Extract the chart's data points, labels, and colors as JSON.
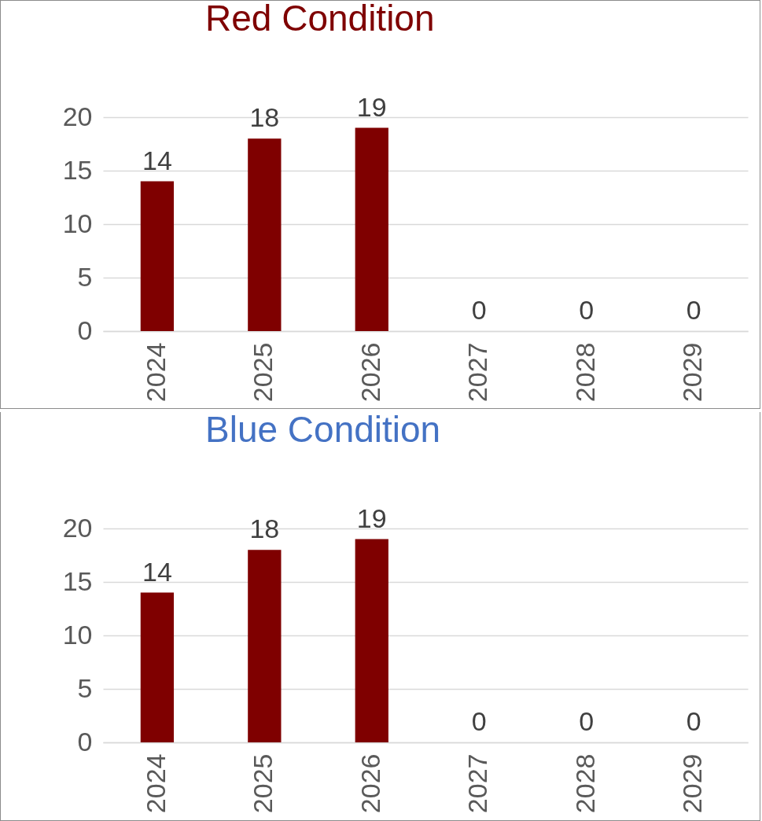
{
  "chart_data": [
    {
      "type": "bar",
      "title": "Red Condition",
      "categories": [
        "2024",
        "2025",
        "2026",
        "2027",
        "2028",
        "2029"
      ],
      "values": [
        14,
        18,
        19,
        0,
        0,
        0
      ],
      "color": "#7f0000",
      "ylim": [
        0,
        20
      ],
      "yticks": [
        0,
        5,
        10,
        15,
        20
      ],
      "grid": "y",
      "data_labels": true
    },
    {
      "type": "bar",
      "title": "Blue Condition",
      "categories": [
        "2024",
        "2025",
        "2026",
        "2027",
        "2028",
        "2029"
      ],
      "values": [
        14,
        18,
        19,
        0,
        0,
        0
      ],
      "color": "#7f0000",
      "ylim": [
        0,
        20
      ],
      "yticks": [
        0,
        5,
        10,
        15,
        20
      ],
      "grid": "y",
      "data_labels": true
    }
  ]
}
